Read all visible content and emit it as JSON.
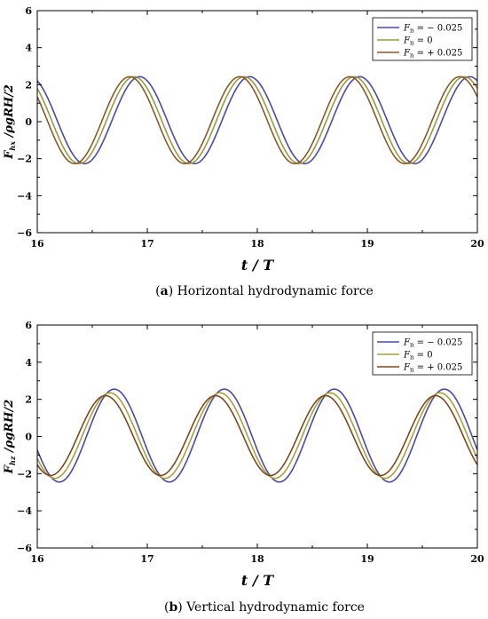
{
  "chart_data": [
    {
      "type": "line",
      "caption_letter": "a",
      "caption_text": "Horizontal hydrodynamic force",
      "ylabel_main": "F",
      "ylabel_sub": "hx",
      "ylabel_rest": " /ρgRH/2",
      "xlabel": "t / T",
      "xlim": [
        16,
        20
      ],
      "ylim": [
        -6,
        6
      ],
      "xticks": [
        "16",
        "17",
        "18",
        "19",
        "20"
      ],
      "yticks": [
        "6",
        "4",
        "2",
        "0",
        "−2",
        "−4",
        "−6"
      ],
      "legend_position": "top-right",
      "series": [
        {
          "name_main": "F",
          "name_sub": "n",
          "name_rest": " = − 0.025",
          "color": "#4a4aa8",
          "amplitude": 2.35,
          "offset": 0.08,
          "phase": 0.93
        },
        {
          "name_main": "F",
          "name_sub": "n",
          "name_rest": " =    0",
          "color": "#9a9a40",
          "amplitude": 2.35,
          "offset": 0.08,
          "phase": 0.88
        },
        {
          "name_main": "F",
          "name_sub": "n",
          "name_rest": " = + 0.025",
          "color": "#8a5a2a",
          "amplitude": 2.35,
          "offset": 0.08,
          "phase": 0.84
        }
      ]
    },
    {
      "type": "line",
      "caption_letter": "b",
      "caption_text": "Vertical hydrodynamic force",
      "ylabel_main": "F",
      "ylabel_sub": "hz",
      "ylabel_rest": " /ρgRH/2",
      "xlabel": "t / T",
      "xlim": [
        16,
        20
      ],
      "ylim": [
        -6,
        6
      ],
      "xticks": [
        "16",
        "17",
        "18",
        "19",
        "20"
      ],
      "yticks": [
        "6",
        "4",
        "2",
        "0",
        "−2",
        "−4",
        "−6"
      ],
      "legend_position": "top-right",
      "series": [
        {
          "name_main": "F",
          "name_sub": "n",
          "name_rest": " = − 0.025",
          "color": "#4a4aa8",
          "amplitude": 2.5,
          "offset": 0.05,
          "phase": 0.7
        },
        {
          "name_main": "F",
          "name_sub": "n",
          "name_rest": " =    0",
          "color": "#a8a040",
          "amplitude": 2.3,
          "offset": 0.05,
          "phase": 0.66
        },
        {
          "name_main": "F",
          "name_sub": "n",
          "name_rest": " = + 0.025",
          "color": "#7a4a20",
          "amplitude": 2.15,
          "offset": 0.05,
          "phase": 0.62
        }
      ]
    }
  ]
}
